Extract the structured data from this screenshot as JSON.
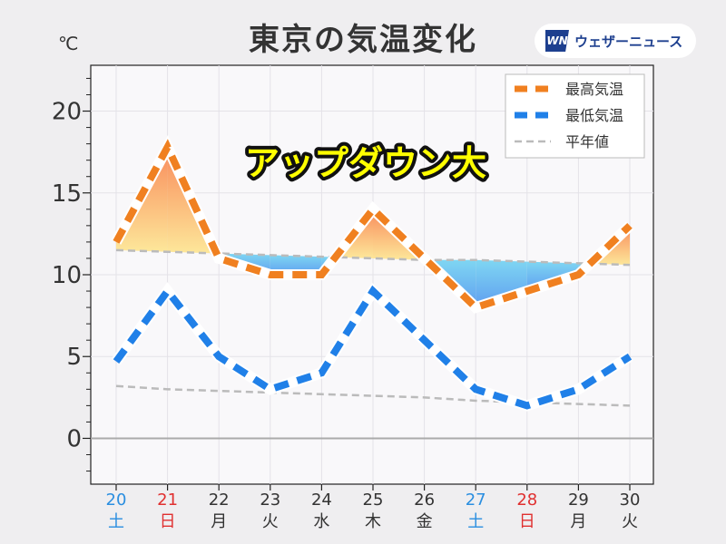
{
  "header": {
    "title": "東京の気温変化",
    "unit": "℃",
    "logo_mark": "WN",
    "logo_text": "ウェザーニュース"
  },
  "annotation": "アップダウン大",
  "colors": {
    "high": "#f08020",
    "low": "#2080e8",
    "normal": "#c0c0c0",
    "saturday": "#2a8ee0",
    "sunday": "#e03030",
    "weekday": "#333333"
  },
  "chart_data": {
    "type": "line",
    "title": "東京の気温変化",
    "ylabel": "℃",
    "ylim": [
      -2.8,
      22.8
    ],
    "yticks": [
      0,
      5,
      10,
      15,
      20
    ],
    "grid": true,
    "legend_position": "top-right",
    "categories": [
      "20",
      "21",
      "22",
      "23",
      "24",
      "25",
      "26",
      "27",
      "28",
      "29",
      "30"
    ],
    "weekdays": [
      "土",
      "日",
      "月",
      "火",
      "水",
      "木",
      "金",
      "土",
      "日",
      "月",
      "火"
    ],
    "series": [
      {
        "name": "最高気温",
        "values": [
          12,
          17.8,
          11,
          10,
          10,
          14,
          11,
          8,
          9,
          10,
          13
        ]
      },
      {
        "name": "最低気温",
        "values": [
          4.7,
          9,
          5,
          3,
          4,
          9,
          6,
          3,
          2,
          3,
          5
        ]
      },
      {
        "name": "平年値",
        "values": [
          11.5,
          11.4,
          11.3,
          11.2,
          11.1,
          11.0,
          10.9,
          10.9,
          10.8,
          10.7,
          10.6
        ]
      },
      {
        "name": "平年値",
        "values": [
          3.2,
          3.0,
          2.9,
          2.8,
          2.7,
          2.6,
          2.5,
          2.3,
          2.2,
          2.1,
          2.0
        ]
      }
    ]
  }
}
